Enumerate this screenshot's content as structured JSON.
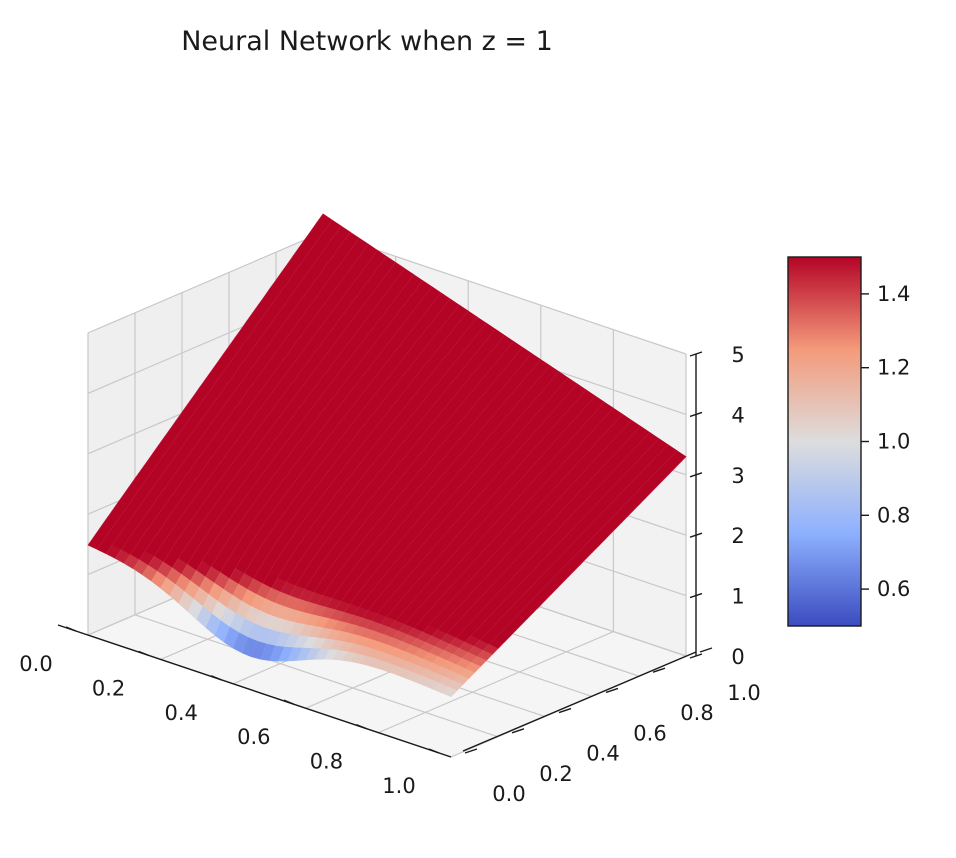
{
  "chart_data": {
    "type": "surface",
    "title": "Neural Network when z = 1",
    "xlabel": "",
    "ylabel": "",
    "zlabel": "",
    "x_ticks": [
      "0.0",
      "0.2",
      "0.4",
      "0.6",
      "0.8",
      "1.0"
    ],
    "y_ticks": [
      "0.0",
      "0.2",
      "0.4",
      "0.6",
      "0.8",
      "1.0"
    ],
    "z_ticks": [
      "0",
      "1",
      "2",
      "3",
      "4",
      "5"
    ],
    "xlim": [
      0,
      1
    ],
    "ylim": [
      0,
      1
    ],
    "zlim": [
      0,
      5
    ],
    "grid": true,
    "colormap": "coolwarm",
    "colorbar": {
      "min": 0.5,
      "max": 1.5,
      "ticks": [
        "0.6",
        "0.8",
        "1.0",
        "1.2",
        "1.4"
      ]
    },
    "surface_corners": [
      {
        "x": 0.0,
        "y": 0.0,
        "z": 1.5
      },
      {
        "x": 1.0,
        "y": 0.0,
        "z": 1.0
      },
      {
        "x": 0.0,
        "y": 1.0,
        "z": 5.3
      },
      {
        "x": 1.0,
        "y": 1.0,
        "z": 3.3
      }
    ],
    "surface_minimum": {
      "x": 0.45,
      "y": 0.0,
      "z": 0.55
    }
  },
  "colors": {
    "high": "#b40426",
    "mid": "#dddddd",
    "low": "#3b4cc0",
    "grid": "#c8c8c8",
    "pane": "#f2f2f2"
  }
}
